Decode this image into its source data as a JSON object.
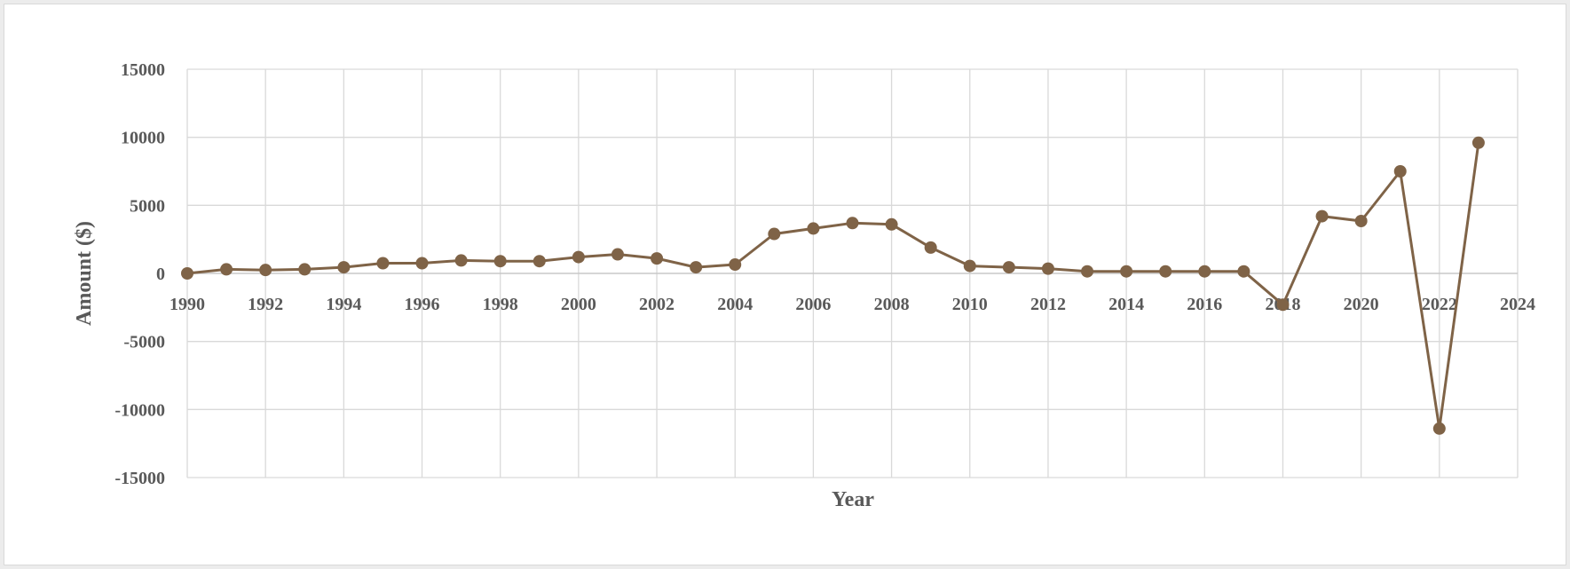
{
  "chart_data": {
    "type": "line",
    "title": "",
    "xlabel": "Year",
    "ylabel": "Amount ($)",
    "xlim": [
      1990,
      2024
    ],
    "ylim": [
      -15000,
      15000
    ],
    "x_ticks": [
      "1990",
      "1992",
      "1994",
      "1996",
      "1998",
      "2000",
      "2002",
      "2004",
      "2006",
      "2008",
      "2010",
      "2012",
      "2014",
      "2016",
      "2018",
      "2020",
      "2022",
      "2024"
    ],
    "y_ticks": [
      "15000",
      "10000",
      "5000",
      "0",
      "-5000",
      "-10000",
      "-15000"
    ],
    "grid": true,
    "legend": "none",
    "series": [
      {
        "color": "#7f6347",
        "x": [
          1990,
          1991,
          1992,
          1993,
          1994,
          1995,
          1996,
          1997,
          1998,
          1999,
          2000,
          2001,
          2002,
          2003,
          2004,
          2005,
          2006,
          2007,
          2008,
          2009,
          2010,
          2011,
          2012,
          2013,
          2014,
          2015,
          2016,
          2017,
          2018,
          2019,
          2020,
          2021,
          2022,
          2023
        ],
        "values": [
          0,
          300,
          250,
          300,
          450,
          750,
          750,
          950,
          900,
          900,
          1200,
          1400,
          1100,
          450,
          650,
          2900,
          3300,
          3700,
          3600,
          1900,
          550,
          450,
          350,
          150,
          150,
          150,
          150,
          150,
          -2300,
          4200,
          3850,
          7500,
          -11400,
          9600
        ]
      }
    ]
  }
}
